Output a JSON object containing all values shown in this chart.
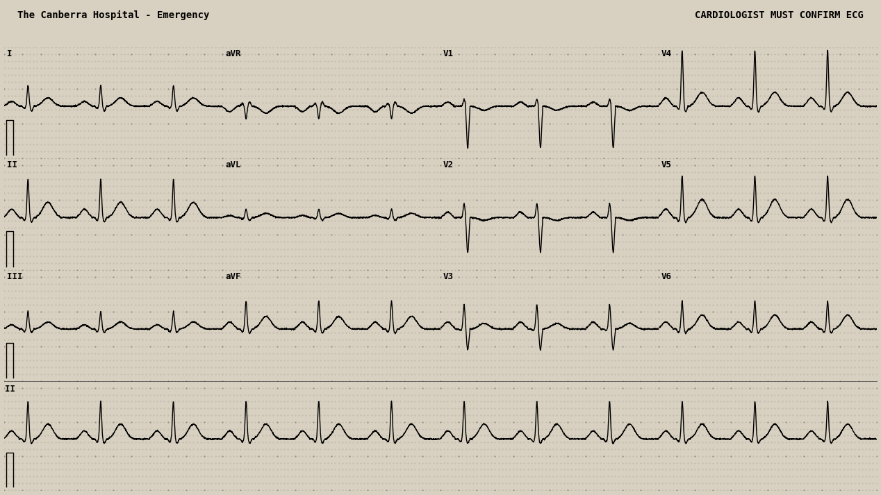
{
  "title_left": "The Canberra Hospital - Emergency",
  "title_right": "CARDIOLOGIST MUST CONFIRM ECG",
  "bg_color": "#d8d0c0",
  "line_color": "#000000",
  "grid_dot_color": "#888880",
  "label_fontsize": 9,
  "title_fontsize": 10,
  "lead_layout": [
    [
      "I",
      "aVR",
      "V1",
      "V4"
    ],
    [
      "II",
      "aVL",
      "V2",
      "V5"
    ],
    [
      "III",
      "aVF",
      "V3",
      "V6"
    ],
    [
      "II",
      "",
      "",
      ""
    ]
  ],
  "n_rows": 4,
  "n_cols": 4
}
